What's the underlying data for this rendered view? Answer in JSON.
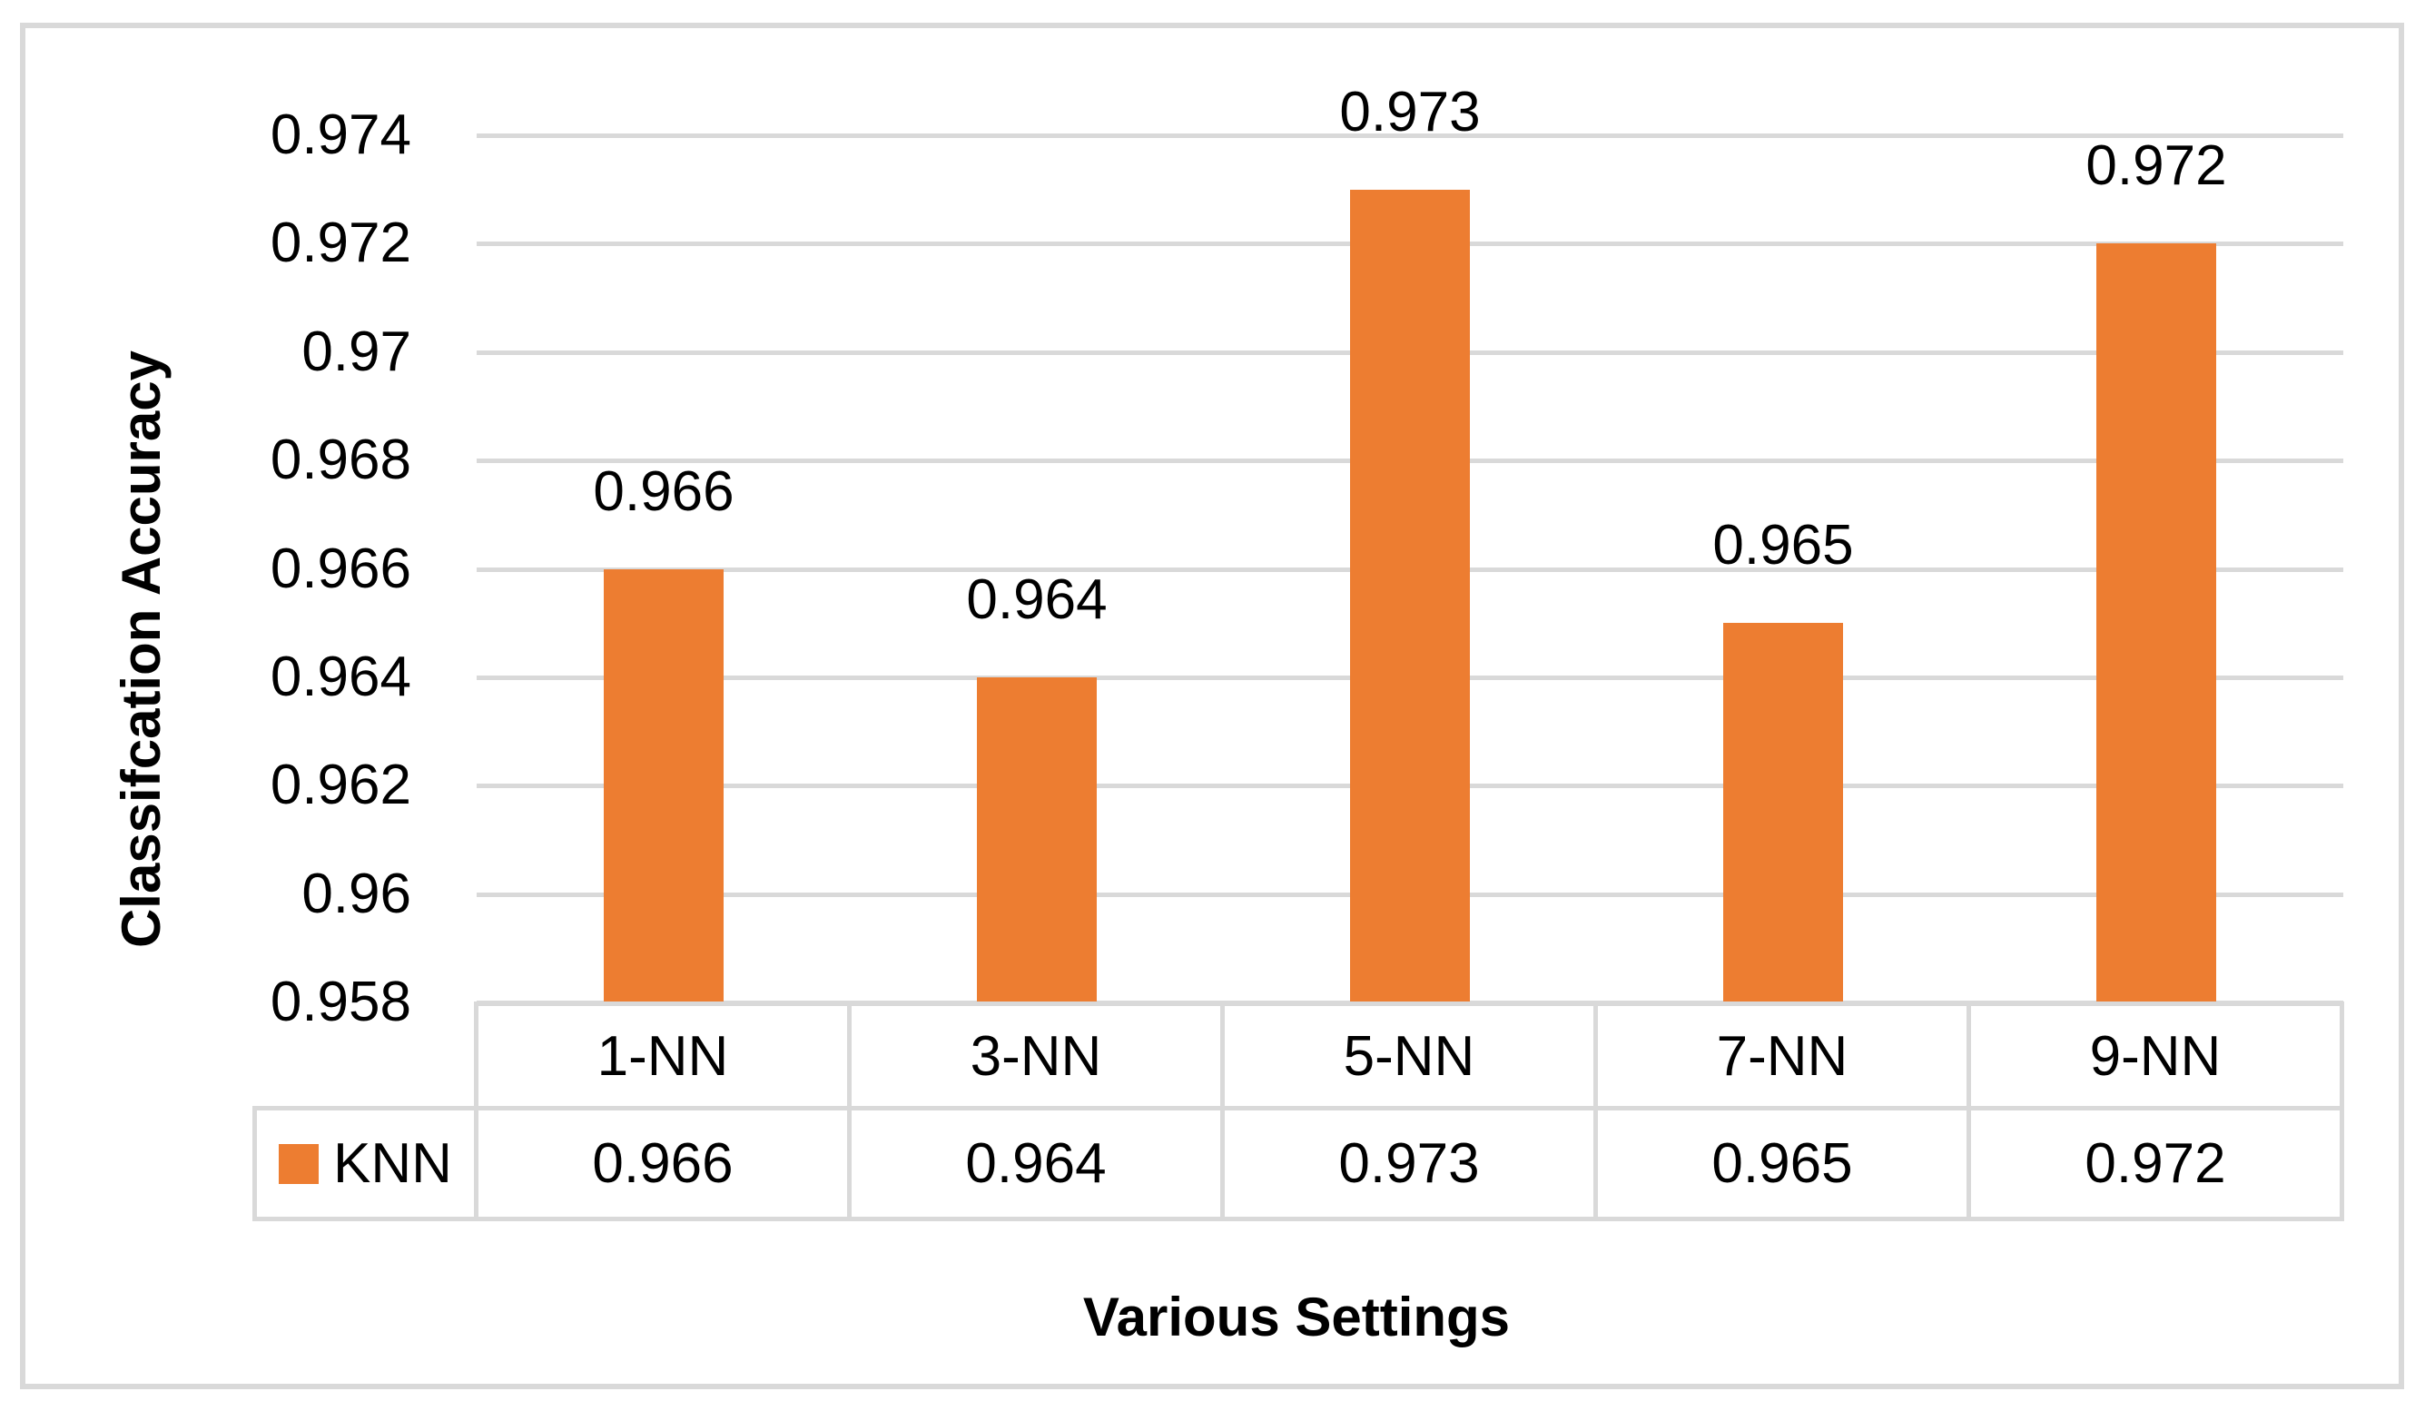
{
  "chart_data": {
    "type": "bar",
    "title": "",
    "categories": [
      "1-NN",
      "3-NN",
      "5-NN",
      "7-NN",
      "9-NN"
    ],
    "series": [
      {
        "name": "KNN",
        "values": [
          0.966,
          0.964,
          0.973,
          0.965,
          0.972
        ]
      }
    ],
    "data_labels": [
      "0.966",
      "0.964",
      "0.973",
      "0.965",
      "0.972"
    ],
    "xlabel": "Various Settings",
    "ylabel": "Classifcation Accuracy",
    "ylim": [
      0.958,
      0.974
    ],
    "ytick_step": 0.002,
    "yticks_top_to_bottom": [
      "0.974",
      "0.972",
      "0.97",
      "0.968",
      "0.966",
      "0.964",
      "0.962",
      "0.96",
      "0.958"
    ],
    "grid": "horizontal",
    "legend_position": "bottom-table-left",
    "colors": {
      "bar": "#ED7D31",
      "gridline": "#D9D9D9",
      "frame_border": "#D9D9D9",
      "table_border": "#D9D9D9",
      "text": "#000000"
    },
    "table": {
      "legend_label": "KNN",
      "column_headers": [
        "1-NN",
        "3-NN",
        "5-NN",
        "7-NN",
        "9-NN"
      ],
      "row_values": [
        "0.966",
        "0.964",
        "0.973",
        "0.965",
        "0.972"
      ]
    }
  }
}
